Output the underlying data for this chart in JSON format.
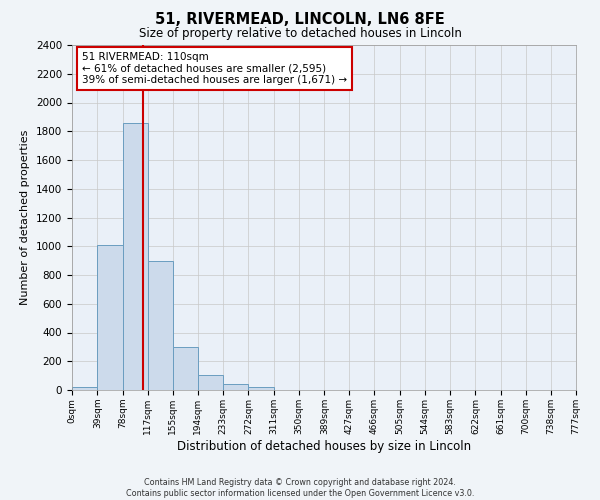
{
  "title": "51, RIVERMEAD, LINCOLN, LN6 8FE",
  "subtitle": "Size of property relative to detached houses in Lincoln",
  "xlabel": "Distribution of detached houses by size in Lincoln",
  "ylabel": "Number of detached properties",
  "footer_line1": "Contains HM Land Registry data © Crown copyright and database right 2024.",
  "footer_line2": "Contains public sector information licensed under the Open Government Licence v3.0.",
  "bar_edges": [
    0,
    39,
    78,
    117,
    155,
    194,
    233,
    272,
    311,
    350,
    389,
    427,
    466,
    505,
    544,
    583,
    622,
    661,
    700,
    738,
    777
  ],
  "bar_heights": [
    20,
    1010,
    1860,
    900,
    300,
    105,
    45,
    20,
    0,
    0,
    0,
    0,
    0,
    0,
    0,
    0,
    0,
    0,
    0,
    0
  ],
  "property_size": 110,
  "annotation_title": "51 RIVERMEAD: 110sqm",
  "annotation_line2": "← 61% of detached houses are smaller (2,595)",
  "annotation_line3": "39% of semi-detached houses are larger (1,671) →",
  "bar_color": "#ccdaeb",
  "bar_edge_color": "#6a9dc0",
  "red_line_color": "#cc0000",
  "annotation_box_color": "#cc0000",
  "background_color": "#f0f4f8",
  "plot_bg_color": "#eaf0f8",
  "grid_color": "#c8c8c8",
  "ylim": [
    0,
    2400
  ],
  "yticks": [
    0,
    200,
    400,
    600,
    800,
    1000,
    1200,
    1400,
    1600,
    1800,
    2000,
    2200,
    2400
  ],
  "tick_labels": [
    "0sqm",
    "39sqm",
    "78sqm",
    "117sqm",
    "155sqm",
    "194sqm",
    "233sqm",
    "272sqm",
    "311sqm",
    "350sqm",
    "389sqm",
    "427sqm",
    "466sqm",
    "505sqm",
    "544sqm",
    "583sqm",
    "622sqm",
    "661sqm",
    "700sqm",
    "738sqm",
    "777sqm"
  ]
}
